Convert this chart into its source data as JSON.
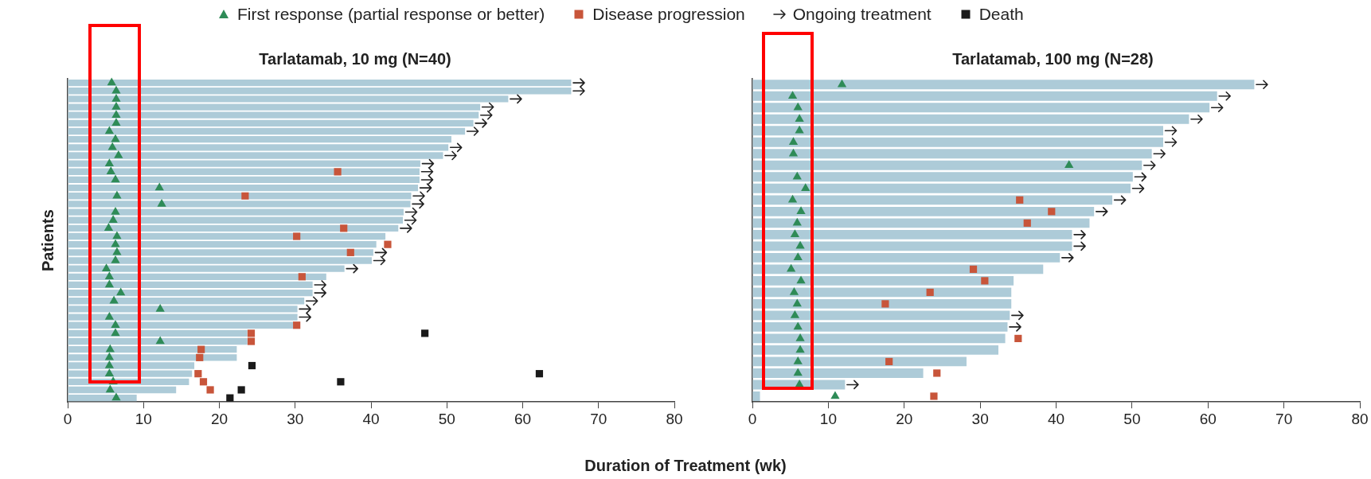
{
  "chart_data": [
    {
      "type": "bar",
      "orientation": "horizontal",
      "title": "Tarlatamab, 10 mg (N=40)",
      "xlabel": "Duration of Treatment (wk)",
      "ylabel": "Patients",
      "legend": "top",
      "tick_labels": "x",
      "xlim": [
        0,
        80
      ],
      "xticks": [
        0,
        10,
        20,
        30,
        40,
        50,
        60,
        70,
        80
      ],
      "categories": [
        null,
        null,
        null,
        null,
        null,
        null,
        null,
        null,
        null,
        null,
        null,
        null,
        null,
        null,
        null,
        null,
        null,
        null,
        null,
        null,
        null,
        null,
        null,
        null,
        null,
        null,
        null,
        null,
        null,
        null,
        null,
        null,
        null,
        null,
        null,
        null,
        null,
        null,
        null,
        null
      ],
      "series": [
        {
          "type": "bar",
          "color": "#adcbd8",
          "values": [
            66.4,
            66.4,
            58.1,
            54.4,
            54.2,
            53.5,
            52.4,
            50.6,
            50.2,
            49.5,
            46.5,
            46.4,
            46.4,
            46.2,
            45.3,
            45.2,
            44.3,
            44.2,
            43.6,
            41.9,
            40.7,
            40.3,
            40.1,
            36.5,
            34.1,
            32.3,
            32.3,
            31.2,
            30.3,
            30.3,
            29.8,
            23.7,
            23.7,
            22.3,
            22.3,
            16.7,
            16.4,
            16.0,
            14.3,
            9.1
          ]
        },
        {
          "type": "scatter",
          "name": "First response (partial response or better)",
          "marker": "triangle",
          "color": "#2e8b57",
          "values": [
            5.8,
            6.4,
            6.4,
            6.4,
            6.4,
            6.4,
            5.5,
            6.3,
            5.9,
            6.7,
            5.5,
            5.7,
            6.3,
            12.1,
            6.5,
            12.4,
            6.3,
            6.0,
            5.4,
            6.5,
            6.3,
            6.5,
            6.3,
            5.1,
            5.5,
            5.5,
            7.0,
            6.1,
            12.2,
            5.5,
            6.3,
            6.3,
            12.2,
            5.6,
            5.5,
            5.5,
            5.5,
            6.0,
            5.6,
            6.4
          ]
        },
        {
          "type": "scatter",
          "name": "Disease progression",
          "marker": "square",
          "color": "#c8553a",
          "values": [
            null,
            null,
            null,
            null,
            null,
            null,
            null,
            null,
            null,
            null,
            null,
            35.6,
            null,
            null,
            23.4,
            null,
            null,
            null,
            36.4,
            30.2,
            42.2,
            37.3,
            null,
            null,
            30.9,
            null,
            null,
            null,
            null,
            null,
            30.2,
            24.2,
            24.2,
            17.6,
            17.4,
            null,
            17.2,
            17.9,
            18.8,
            null
          ]
        },
        {
          "type": "scatter",
          "name": "Ongoing treatment",
          "marker": "cross",
          "color": "#222222",
          "values": [
            67.4,
            67.4,
            59.1,
            55.4,
            55.2,
            54.5,
            53.4,
            null,
            51.2,
            50.5,
            47.5,
            47.4,
            47.4,
            47.2,
            46.3,
            46.2,
            45.3,
            45.2,
            44.6,
            null,
            null,
            41.3,
            41.1,
            37.5,
            null,
            33.3,
            33.3,
            32.2,
            31.3,
            31.3,
            null,
            null,
            null,
            null,
            null,
            null,
            null,
            null,
            null,
            null
          ]
        },
        {
          "type": "scatter",
          "name": "Death",
          "marker": "square",
          "color": "#1a1a1a",
          "values": [
            null,
            null,
            null,
            null,
            null,
            null,
            null,
            null,
            null,
            null,
            null,
            null,
            null,
            null,
            null,
            null,
            null,
            null,
            null,
            null,
            null,
            null,
            null,
            null,
            null,
            null,
            null,
            null,
            null,
            null,
            null,
            47.1,
            null,
            null,
            null,
            24.3,
            62.2,
            36.0,
            22.9,
            21.4
          ]
        }
      ]
    },
    {
      "type": "bar",
      "orientation": "horizontal",
      "title": "Tarlatamab, 100 mg (N=28)",
      "tick_labels": "x",
      "xlim": [
        0,
        80
      ],
      "xticks": [
        0,
        10,
        20,
        30,
        40,
        50,
        60,
        70,
        80
      ],
      "categories": [
        null,
        null,
        null,
        null,
        null,
        null,
        null,
        null,
        null,
        null,
        null,
        null,
        null,
        null,
        null,
        null,
        null,
        null,
        null,
        null,
        null,
        null,
        null,
        null,
        null,
        null,
        null,
        null
      ],
      "series": [
        {
          "type": "bar",
          "color": "#adcbd8",
          "values": [
            66.1,
            61.2,
            60.2,
            57.5,
            54.1,
            54.1,
            52.6,
            51.3,
            50.1,
            49.8,
            47.4,
            45.0,
            44.4,
            42.1,
            42.1,
            40.5,
            38.3,
            34.4,
            34.1,
            34.1,
            33.9,
            33.6,
            33.3,
            32.4,
            28.2,
            22.5,
            12.2,
            1.0
          ]
        },
        {
          "type": "scatter",
          "marker": "triangle",
          "color": "#2e8b57",
          "values": [
            11.8,
            5.3,
            6.0,
            6.2,
            6.2,
            5.4,
            5.4,
            41.7,
            5.9,
            7.0,
            5.3,
            6.4,
            5.9,
            5.6,
            6.3,
            6.0,
            5.1,
            6.4,
            5.5,
            5.9,
            5.6,
            6.0,
            6.3,
            6.3,
            6.0,
            6.0,
            6.2,
            10.9
          ]
        },
        {
          "type": "scatter",
          "marker": "square",
          "color": "#c8553a",
          "values": [
            null,
            null,
            null,
            null,
            null,
            null,
            null,
            null,
            null,
            null,
            35.2,
            39.4,
            36.2,
            null,
            null,
            null,
            29.1,
            30.6,
            23.4,
            17.5,
            null,
            null,
            35.0,
            null,
            18.0,
            24.3,
            null,
            23.9
          ]
        },
        {
          "type": "scatter",
          "marker": "cross",
          "color": "#222222",
          "values": [
            67.1,
            62.2,
            61.2,
            58.5,
            55.1,
            55.1,
            53.6,
            52.3,
            51.1,
            50.8,
            48.4,
            46.0,
            null,
            43.1,
            43.1,
            41.5,
            null,
            null,
            null,
            null,
            34.9,
            34.6,
            null,
            null,
            null,
            null,
            13.2,
            null
          ]
        }
      ]
    }
  ]
}
